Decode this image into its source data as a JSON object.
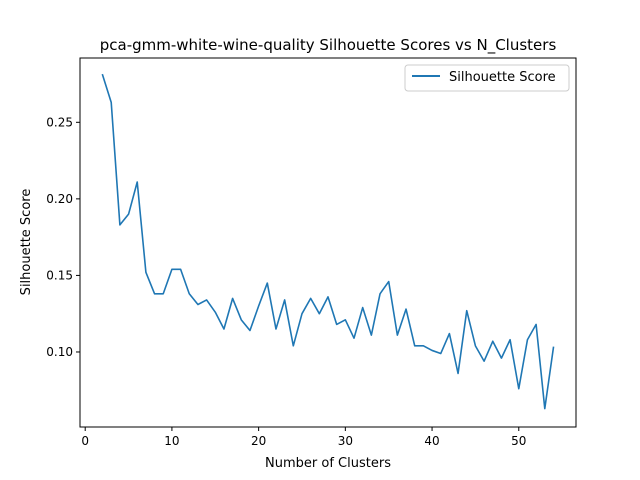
{
  "chart_data": {
    "type": "line",
    "title": "pca-gmm-white-wine-quality Silhouette Scores vs N_Clusters",
    "xlabel": "Number of Clusters",
    "ylabel": "Silhouette Score",
    "xlim": [
      -0.6,
      56.6
    ],
    "ylim": [
      0.051,
      0.292
    ],
    "xticks": [
      0,
      10,
      20,
      30,
      40,
      50
    ],
    "yticks": [
      0.1,
      0.15,
      0.2,
      0.25
    ],
    "xtick_labels": [
      "0",
      "10",
      "20",
      "30",
      "40",
      "50"
    ],
    "ytick_labels": [
      "0.10",
      "0.15",
      "0.20",
      "0.25"
    ],
    "grid": false,
    "legend_position": "top-right",
    "series": [
      {
        "name": "Silhouette Score",
        "color": "#1f77b4",
        "x": [
          2,
          3,
          4,
          5,
          6,
          7,
          8,
          9,
          10,
          11,
          12,
          13,
          14,
          15,
          16,
          17,
          18,
          19,
          20,
          21,
          22,
          23,
          24,
          25,
          26,
          27,
          28,
          29,
          30,
          31,
          32,
          33,
          34,
          35,
          36,
          37,
          38,
          39,
          40,
          41,
          42,
          43,
          44,
          45,
          46,
          47,
          48,
          49,
          50,
          51,
          52,
          53,
          54
        ],
        "y": [
          0.281,
          0.263,
          0.183,
          0.19,
          0.211,
          0.152,
          0.138,
          0.138,
          0.154,
          0.154,
          0.138,
          0.131,
          0.134,
          0.126,
          0.115,
          0.135,
          0.121,
          0.114,
          0.13,
          0.145,
          0.115,
          0.134,
          0.104,
          0.125,
          0.135,
          0.125,
          0.136,
          0.118,
          0.121,
          0.109,
          0.129,
          0.111,
          0.138,
          0.146,
          0.111,
          0.128,
          0.104,
          0.104,
          0.101,
          0.099,
          0.112,
          0.086,
          0.127,
          0.104,
          0.094,
          0.107,
          0.096,
          0.108,
          0.076,
          0.108,
          0.118,
          0.063,
          0.103
        ]
      }
    ]
  }
}
